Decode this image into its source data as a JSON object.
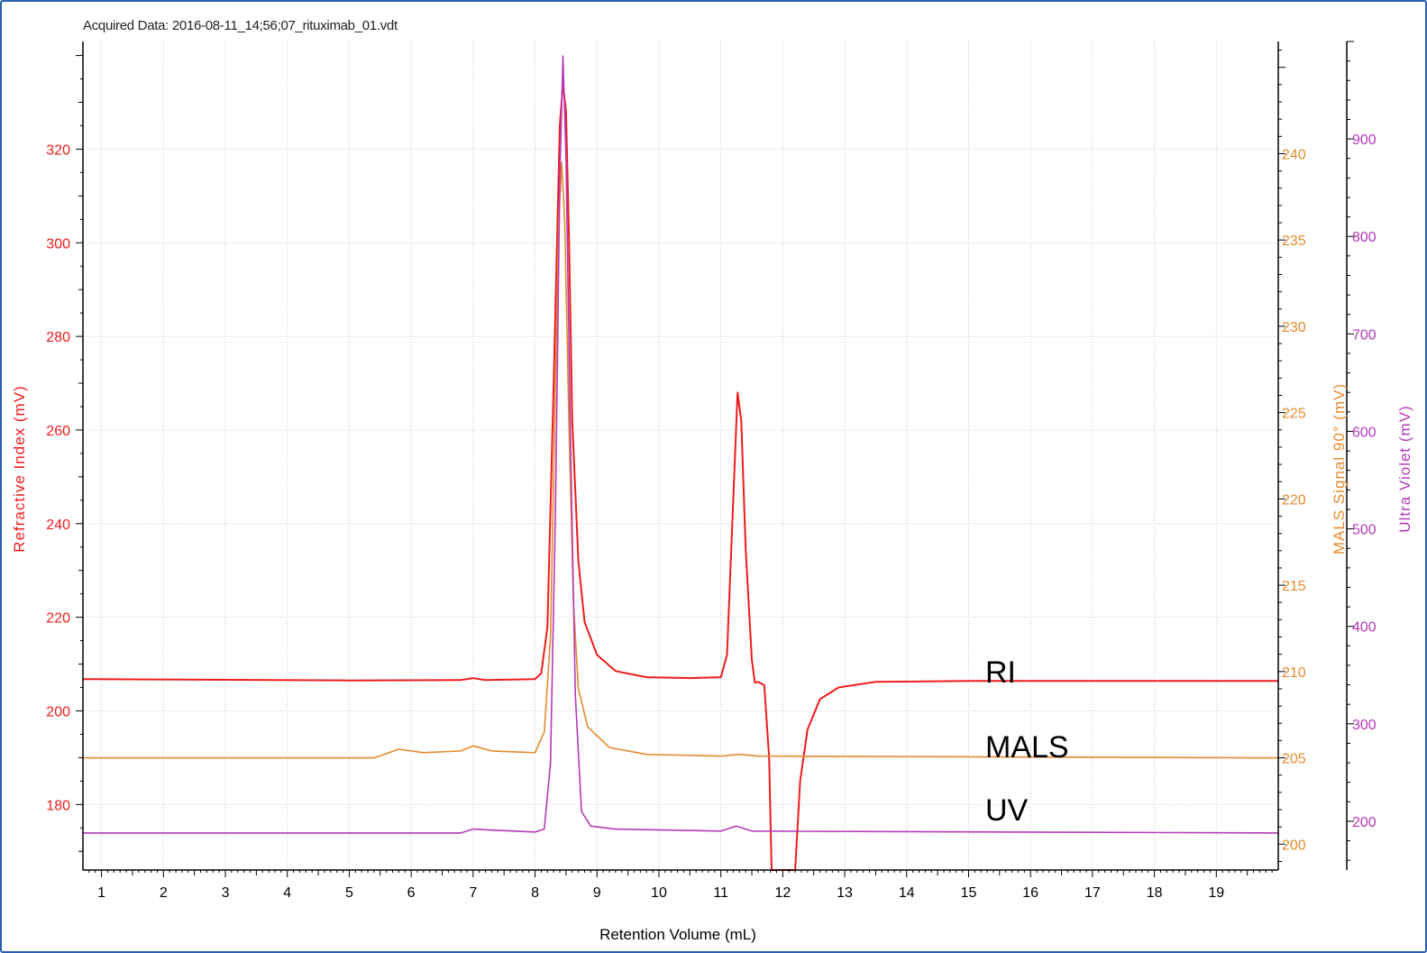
{
  "header": {
    "acquired_label": "Acquired Data: 2016-08-11_14;56;07_rituximab_01.vdt"
  },
  "colors": {
    "ri": "#ee1c1c",
    "mals": "#e58a2e",
    "uv": "#b43ab8",
    "grid": "#c8c8c8",
    "axis": "#000000"
  },
  "chart_data": {
    "type": "line",
    "title": "",
    "xlabel": "Retention Volume (mL)",
    "xlim": [
      0.7,
      20
    ],
    "xticks": [
      1,
      2,
      3,
      4,
      5,
      6,
      7,
      8,
      9,
      10,
      11,
      12,
      13,
      14,
      15,
      16,
      17,
      18,
      19
    ],
    "axes": {
      "ri": {
        "label": "Refractive Index (mV)",
        "ylim": [
          166,
          343
        ],
        "ticks": [
          180,
          200,
          220,
          240,
          260,
          280,
          300,
          320
        ]
      },
      "mals": {
        "label": "MALS Signal 90° (mV)",
        "ylim": [
          198.5,
          246.5
        ],
        "ticks": [
          200,
          205,
          210,
          215,
          220,
          225,
          230,
          235,
          240
        ]
      },
      "uv": {
        "label": "Ultra Violet (mV)",
        "ylim": [
          150,
          1000
        ],
        "ticks": [
          200,
          300,
          400,
          500,
          600,
          700,
          800,
          900
        ]
      }
    },
    "series": [
      {
        "name": "RI",
        "axis": "ri",
        "points": [
          [
            0.7,
            206.8
          ],
          [
            5.0,
            206.5
          ],
          [
            6.8,
            206.6
          ],
          [
            7.0,
            207.0
          ],
          [
            7.2,
            206.6
          ],
          [
            8.0,
            206.8
          ],
          [
            8.1,
            208
          ],
          [
            8.2,
            218
          ],
          [
            8.3,
            270
          ],
          [
            8.4,
            325
          ],
          [
            8.45,
            334
          ],
          [
            8.5,
            328
          ],
          [
            8.55,
            300
          ],
          [
            8.6,
            262
          ],
          [
            8.7,
            232
          ],
          [
            8.8,
            219
          ],
          [
            9.0,
            212
          ],
          [
            9.3,
            208.5
          ],
          [
            9.8,
            207.2
          ],
          [
            10.5,
            207.0
          ],
          [
            11.0,
            207.2
          ],
          [
            11.1,
            212
          ],
          [
            11.2,
            245
          ],
          [
            11.27,
            268
          ],
          [
            11.33,
            262
          ],
          [
            11.4,
            235
          ],
          [
            11.5,
            211
          ],
          [
            11.55,
            206
          ],
          [
            11.6,
            206.2
          ],
          [
            11.7,
            205.5
          ],
          [
            11.78,
            190
          ],
          [
            11.82,
            166
          ],
          [
            12.2,
            166
          ],
          [
            12.28,
            185
          ],
          [
            12.4,
            196
          ],
          [
            12.6,
            202.5
          ],
          [
            12.9,
            205
          ],
          [
            13.5,
            206.2
          ],
          [
            15.0,
            206.4
          ],
          [
            20,
            206.4
          ]
        ]
      },
      {
        "name": "MALS",
        "axis": "mals",
        "points": [
          [
            0.7,
            205
          ],
          [
            5.4,
            205
          ],
          [
            5.8,
            205.5
          ],
          [
            6.2,
            205.3
          ],
          [
            6.8,
            205.4
          ],
          [
            7.0,
            205.7
          ],
          [
            7.3,
            205.4
          ],
          [
            8.0,
            205.3
          ],
          [
            8.15,
            206.5
          ],
          [
            8.25,
            212
          ],
          [
            8.32,
            225
          ],
          [
            8.38,
            236
          ],
          [
            8.43,
            239.5
          ],
          [
            8.48,
            236
          ],
          [
            8.55,
            224
          ],
          [
            8.62,
            214
          ],
          [
            8.7,
            209
          ],
          [
            8.85,
            206.8
          ],
          [
            9.2,
            205.6
          ],
          [
            9.8,
            205.2
          ],
          [
            11.0,
            205.1
          ],
          [
            11.3,
            205.2
          ],
          [
            11.6,
            205.1
          ],
          [
            20,
            205
          ]
        ]
      },
      {
        "name": "UV",
        "axis": "uv",
        "points": [
          [
            0.7,
            188
          ],
          [
            6.8,
            188
          ],
          [
            7.0,
            192
          ],
          [
            7.3,
            191
          ],
          [
            8.0,
            189
          ],
          [
            8.15,
            192
          ],
          [
            8.25,
            260
          ],
          [
            8.33,
            520
          ],
          [
            8.4,
            860
          ],
          [
            8.45,
            985
          ],
          [
            8.5,
            880
          ],
          [
            8.57,
            600
          ],
          [
            8.65,
            330
          ],
          [
            8.75,
            210
          ],
          [
            8.9,
            195
          ],
          [
            9.3,
            192
          ],
          [
            11.0,
            190
          ],
          [
            11.25,
            195
          ],
          [
            11.5,
            190
          ],
          [
            20,
            188
          ]
        ]
      }
    ],
    "annotations": [
      "RI",
      "MALS",
      "UV"
    ]
  }
}
